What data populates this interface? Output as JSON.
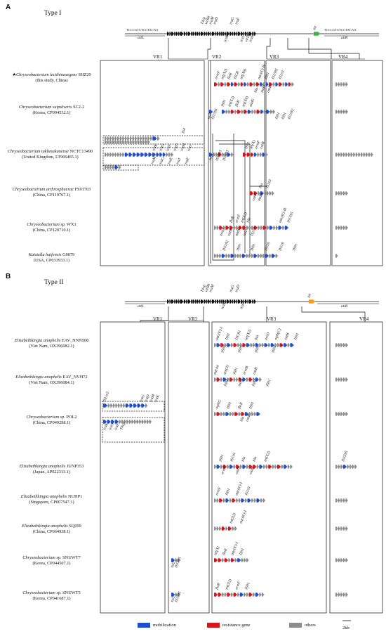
{
  "panels": {
    "A": {
      "letter": "A",
      "type_label": "Type I",
      "attL": "attL",
      "attR": "attR",
      "att_seq": "TCCCGTCTCCTACAA",
      "int_label": "int"
    },
    "B": {
      "letter": "B",
      "type_label": "Type II",
      "attL": "attL",
      "attR": "attR",
      "int_label": "int"
    }
  },
  "vr_labels": [
    "VR1",
    "VR2",
    "VR3",
    "VR4"
  ],
  "backbone_genes_A": [
    "T4cp",
    "virB4",
    "traM",
    "traD",
    "traK",
    "traG",
    "traF",
    "traJ",
    "virD4",
    "traE"
  ],
  "backbone_genes_B": [
    "T4cp",
    "virB4",
    "traM",
    "traK",
    "traG",
    "traD",
    "traF"
  ],
  "strains_A": [
    {
      "name": "Chryseobacterium lecithinasegens",
      "id": "SHZ29",
      "loc": "(this study, China)",
      "star": "★",
      "genes": [
        "ermF",
        "tet(X2)",
        "floR",
        "tet(X6)",
        "aac(6')-Ib",
        "bla",
        "IS91",
        "IS1595",
        "IS110",
        "catB",
        "aadS"
      ]
    },
    {
      "name": "Chryseobacterium suipulveris",
      "id": "SC2-2",
      "loc": "(Korea, CP094532.1)",
      "genes": [
        "IS1595",
        "IS91",
        "tet(X2)",
        "floR",
        "tet(X6)",
        "aadS",
        "IS91",
        "IS1182"
      ]
    },
    {
      "name": "Chryseobacterium taklimakanense",
      "id": "NCTC13490",
      "loc": "(United Kingdom, LT906465.1)",
      "genes": [
        "IS4",
        "IS1595",
        "IS1595",
        "tet(X)",
        "ermF",
        "catB",
        "IS91"
      ]
    },
    {
      "name": "Chryseobacterium arthrosphaerae",
      "id": "FS91703",
      "loc": "(China, CP119767.1)",
      "genes": [
        "IS110",
        "catB",
        "aadS"
      ]
    },
    {
      "name": "Chryseobacterium sp.",
      "id": "WX1",
      "loc": "(China, CP120710.1)",
      "genes": [
        "floR",
        "ermF",
        "tet(X2)",
        "catB",
        "aadS",
        "aac(6')-Ib",
        "IS1595",
        "IS110"
      ]
    },
    {
      "name": "Kaistella haifensis",
      "id": "G0079",
      "loc": "(USA, CP033933.1)",
      "genes": [
        "IS1182",
        "IS91",
        "IS91",
        "IS110",
        "IS110",
        "IS91"
      ]
    }
  ],
  "strains_B": [
    {
      "name": "Elizabethkingia anophelis",
      "id": "EAV_NNN508",
      "loc": "(Viet Nam, OX396082.1)",
      "genes": [
        "aac(6')-I",
        "IS91",
        "tet(X2)",
        "ereD",
        "catB",
        "mph(C)",
        "IS91"
      ]
    },
    {
      "name": "Elizabethkingia anophelis",
      "id": "EAV_NVH72",
      "loc": "(Viet Nam, OX396084.1)",
      "genes": [
        "aac44",
        "ant(3)",
        "IS91",
        "ermB",
        "catB",
        "IS91"
      ]
    },
    {
      "name": "Chryseobacterium sp.",
      "id": "POL2",
      "loc": "(China, CP049298.1)",
      "genes": [
        "ISLre2",
        "traK",
        "traG",
        "T4cp",
        "mphG",
        "IS91",
        "floR",
        "catB",
        "IS91"
      ]
    },
    {
      "name": "Elizabethkingia anophelis",
      "id": "JUNP353",
      "loc": "(Japan, AP022313.1)",
      "genes": [
        "IS91",
        "ermF",
        "IS110",
        "catB",
        "tet(X2)",
        "IS1595"
      ]
    },
    {
      "name": "Elizabethkingia anophelis",
      "id": "NUHP1",
      "loc": "(Singapore, CP007547.1)",
      "genes": [
        "ermE",
        "IS91",
        "aac(6')-I",
        "IS110"
      ]
    },
    {
      "name": "Elizabethkingia anophelis",
      "id": "SQ099",
      "loc": "(China, CP064938.1)",
      "genes": [
        "tet(X2)",
        "aac(6')-I"
      ]
    },
    {
      "name": "Chryseobacterium sp.",
      "id": "SNUWT7",
      "loc": "(Korea, CP044507.1)",
      "genes": [
        "IS1595",
        "sul2",
        "tet(X)",
        "floR",
        "aac(6')-I",
        "IS91"
      ]
    },
    {
      "name": "Chryseobacterium sp.",
      "id": "SNUWT5",
      "loc": "(Korea, CP041687.1)",
      "genes": [
        "IS1595",
        "sul2",
        "floR",
        "tet(X2)",
        "ermF",
        "IS91"
      ]
    }
  ],
  "legend": [
    {
      "label": "mobilization",
      "color": "#1f4fd1"
    },
    {
      "label": "resistance gene",
      "color": "#d8141a"
    },
    {
      "label": "others",
      "color": "#8c8c8c"
    }
  ],
  "scale_bar": "2kb",
  "colors": {
    "mobilization": "#1f4fd1",
    "resistance": "#d8141a",
    "others": "#8c8c8c",
    "backbone": "#111111",
    "int_A": "#3bb54a",
    "int_B": "#f2a02a"
  }
}
